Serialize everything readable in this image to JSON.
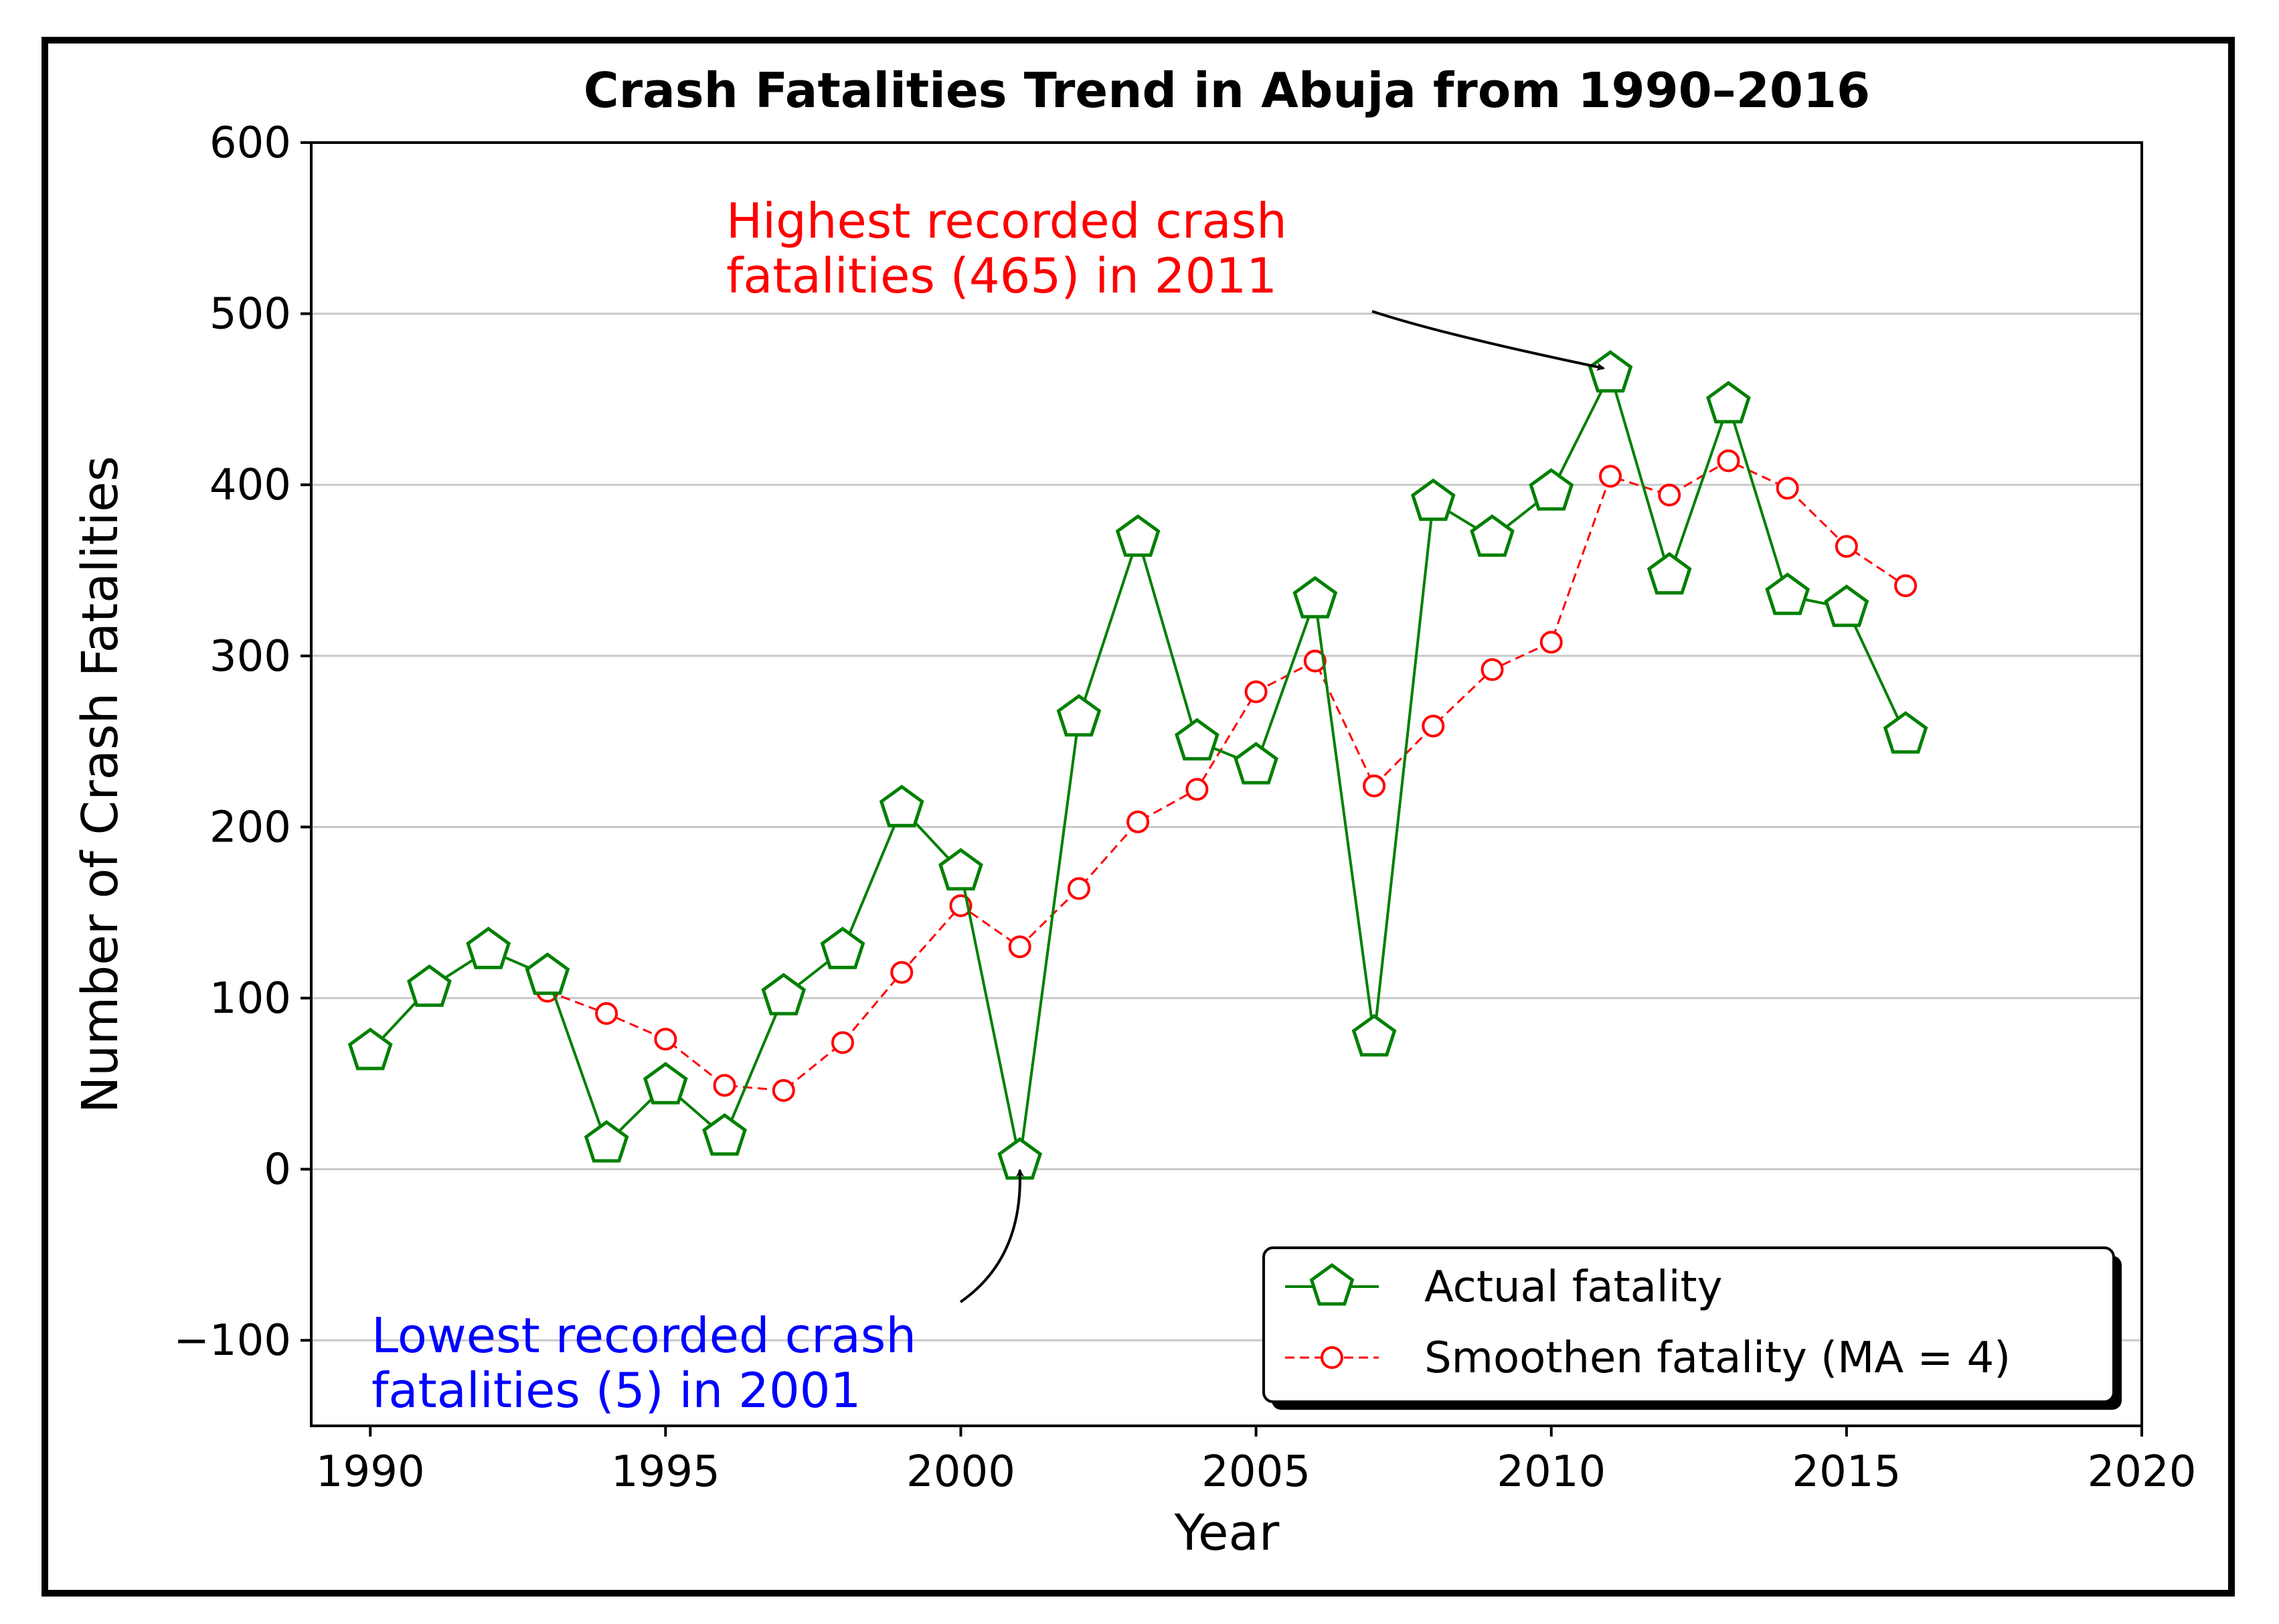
{
  "chart_data": {
    "type": "line",
    "title": "Crash Fatalities Trend in Abuja from 1990–2016",
    "xlabel": "Year",
    "ylabel": "Number of Crash Fatalities",
    "xlim": [
      1989,
      2020
    ],
    "ylim": [
      -150,
      600
    ],
    "xticks": [
      1990,
      1995,
      2000,
      2005,
      2010,
      2015,
      2020
    ],
    "yticks": [
      -100,
      0,
      100,
      200,
      300,
      400,
      500,
      600
    ],
    "ytick_labels": [
      "−100",
      "0",
      "100",
      "200",
      "300",
      "400",
      "500",
      "600"
    ],
    "grid": "horizontal",
    "legend_position": "lower-right",
    "series": [
      {
        "name": "Actual fatality",
        "color": "#008000",
        "marker": "pentagon",
        "line": "solid",
        "x": [
          1990,
          1991,
          1992,
          1993,
          1994,
          1995,
          1996,
          1997,
          1998,
          1999,
          2000,
          2001,
          2002,
          2003,
          2004,
          2005,
          2006,
          2007,
          2008,
          2009,
          2010,
          2011,
          2012,
          2013,
          2014,
          2015,
          2016
        ],
        "values": [
          69,
          106,
          128,
          113,
          15,
          49,
          19,
          101,
          128,
          211,
          174,
          5,
          264,
          369,
          250,
          236,
          333,
          77,
          390,
          369,
          396,
          465,
          347,
          447,
          335,
          328,
          254
        ]
      },
      {
        "name": "Smoothen fatality (MA = 4)",
        "color": "#ff0000",
        "marker": "circle",
        "line": "dashed",
        "x": [
          1993,
          1994,
          1995,
          1996,
          1997,
          1998,
          1999,
          2000,
          2001,
          2002,
          2003,
          2004,
          2005,
          2006,
          2007,
          2008,
          2009,
          2010,
          2011,
          2012,
          2013,
          2014,
          2015,
          2016
        ],
        "values": [
          104,
          91,
          76,
          49,
          46,
          74,
          115,
          154,
          130,
          164,
          203,
          222,
          279,
          297,
          224,
          259,
          292,
          308,
          405,
          394,
          414,
          398,
          364,
          341
        ]
      }
    ],
    "annotations": [
      {
        "text_line1": "Highest recorded crash",
        "text_line2": "fatalities (465) in 2011",
        "color": "#ff0000",
        "target_x": 2011,
        "target_y": 465
      },
      {
        "text_line1": "Lowest recorded crash",
        "text_line2": "fatalities (5) in 2001",
        "color": "#0000ff",
        "target_x": 2001,
        "target_y": 5
      }
    ]
  }
}
